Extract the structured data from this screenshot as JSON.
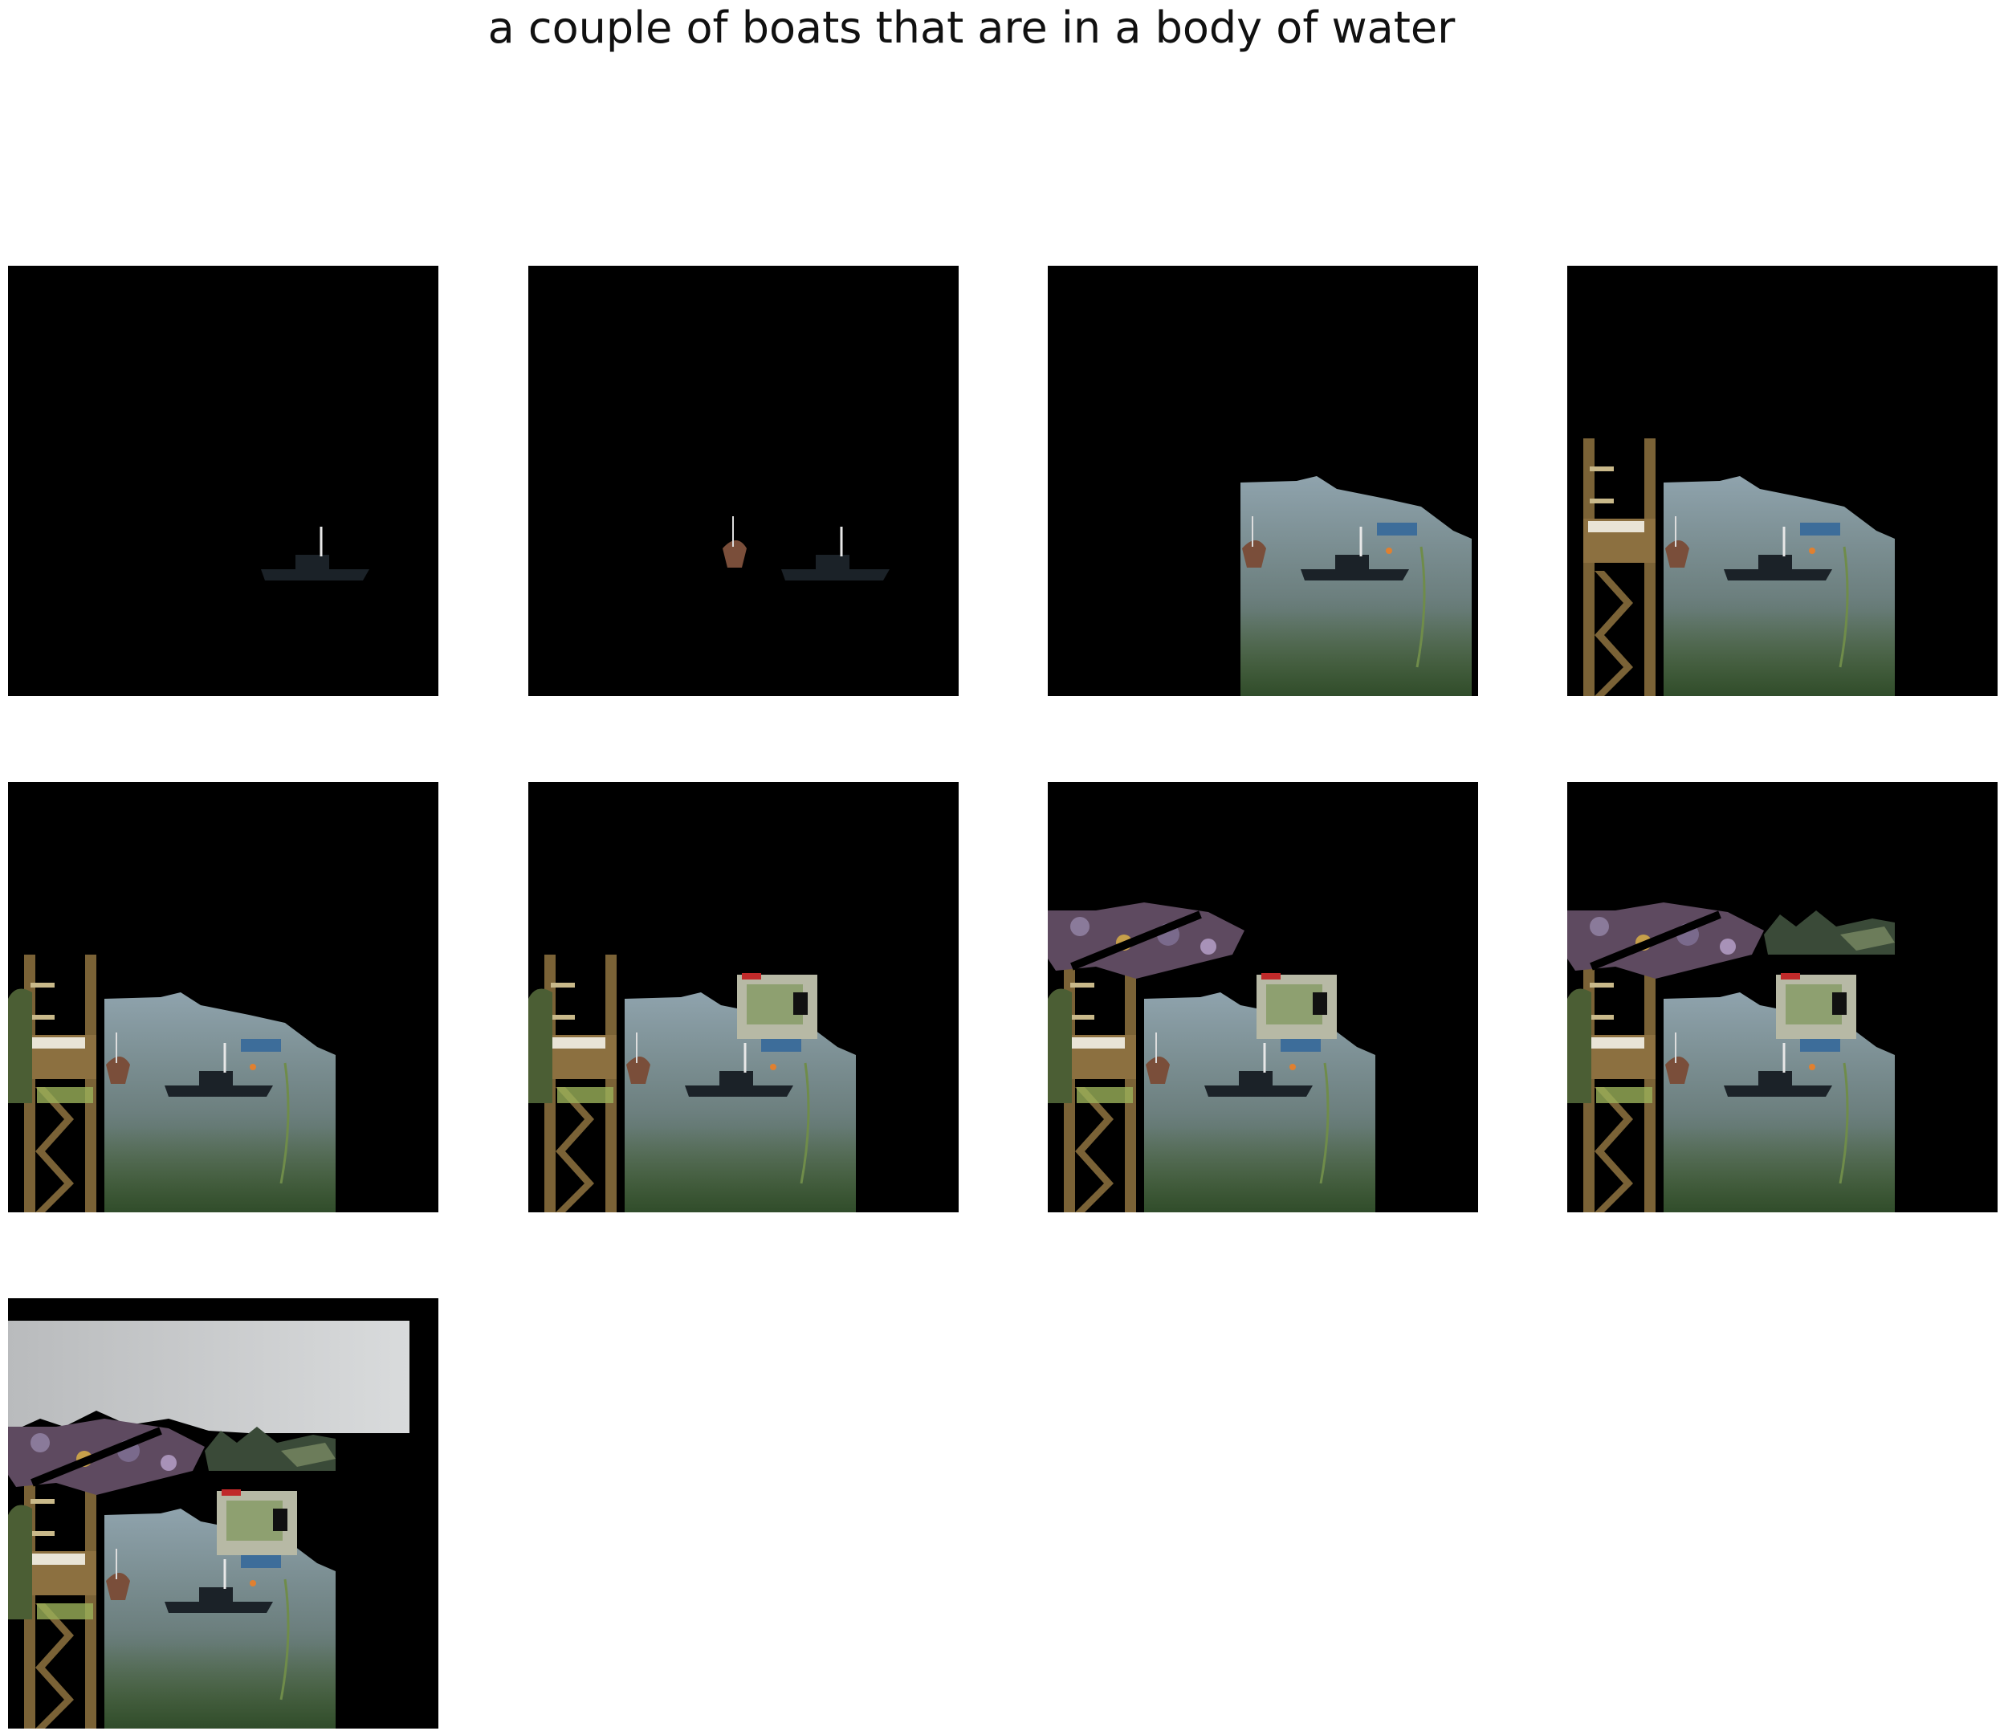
{
  "title": "a couple of boats that are in a body of water",
  "panels": [
    {
      "step": 1,
      "layers": [
        "boat"
      ]
    },
    {
      "step": 2,
      "layers": [
        "boat",
        "small-boat"
      ]
    },
    {
      "step": 3,
      "layers": [
        "water",
        "small-boat",
        "boat",
        "buoys"
      ]
    },
    {
      "step": 4,
      "layers": [
        "ladder",
        "water",
        "small-boat",
        "boat",
        "buoys"
      ]
    },
    {
      "step": 5,
      "layers": [
        "ladder",
        "bush",
        "water",
        "small-boat",
        "boat",
        "buoys"
      ]
    },
    {
      "step": 6,
      "layers": [
        "ladder",
        "bush",
        "water",
        "shed",
        "small-boat",
        "boat",
        "buoys"
      ]
    },
    {
      "step": 7,
      "layers": [
        "ladder",
        "bush",
        "water",
        "shed",
        "flowers",
        "small-boat",
        "boat",
        "buoys"
      ]
    },
    {
      "step": 8,
      "layers": [
        "ladder",
        "bush",
        "water",
        "shed",
        "flowers",
        "trees",
        "small-boat",
        "boat",
        "buoys"
      ]
    },
    {
      "step": 9,
      "layers": [
        "sky",
        "ladder",
        "bush",
        "water",
        "shed",
        "flowers",
        "trees",
        "small-boat",
        "boat",
        "buoys"
      ]
    }
  ],
  "colors": {
    "background": "#000000",
    "water_top": "#8fa3ad",
    "water_bottom": "#3d5a3a",
    "wood": "#7a6236",
    "boat": "#1b2228",
    "sky": "#d9dbdc"
  }
}
